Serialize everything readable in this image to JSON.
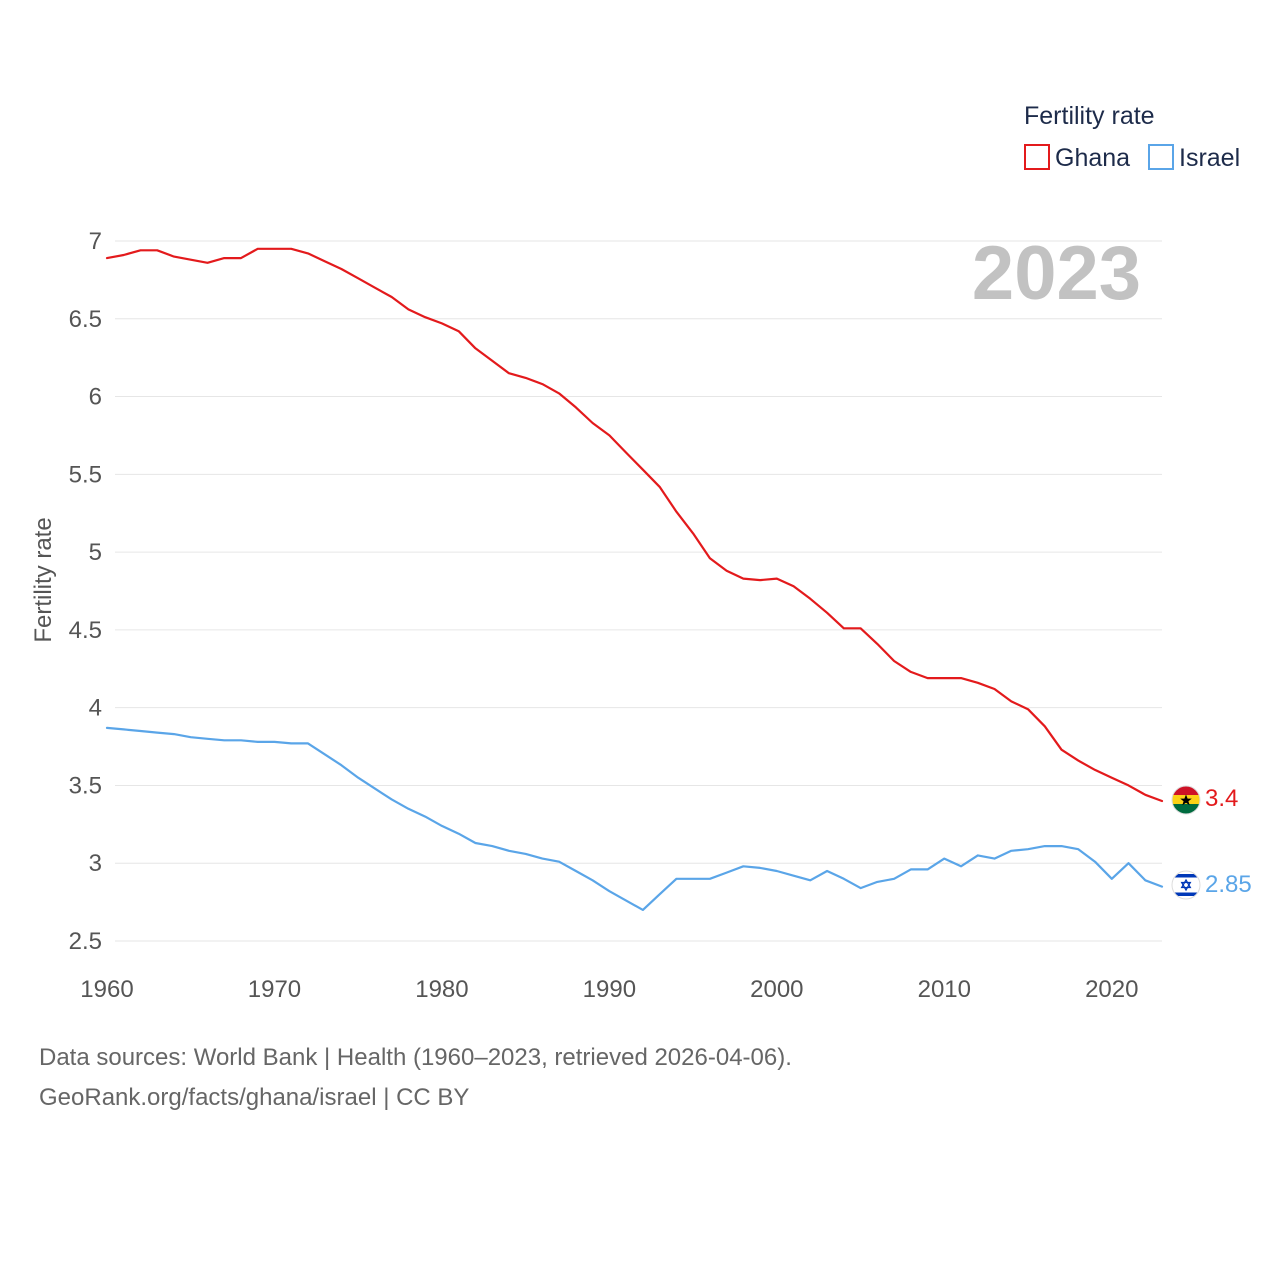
{
  "legend": {
    "title": "Fertility rate",
    "items": [
      {
        "label": "Ghana",
        "color": "#e31a1c"
      },
      {
        "label": "Israel",
        "color": "#5aa5e8"
      }
    ]
  },
  "year_label": "2023",
  "end_labels": {
    "ghana": "3.4",
    "israel": "2.85"
  },
  "flag_icons": {
    "ghana": "ghana-flag-icon",
    "israel": "israel-flag-icon"
  },
  "source": {
    "line1": "Data sources: World Bank | Health (1960–2023, retrieved 2026-04-06).",
    "line2": "GeoRank.org/facts/ghana/israel | CC BY"
  },
  "chart_data": {
    "type": "line",
    "title": "",
    "xlabel": "",
    "ylabel": "Fertility rate",
    "xlim": [
      1960,
      2023
    ],
    "ylim": [
      2.5,
      7
    ],
    "x_ticks": [
      1960,
      1970,
      1980,
      1990,
      2000,
      2010,
      2020
    ],
    "y_ticks": [
      2.5,
      3,
      3.5,
      4,
      4.5,
      5,
      5.5,
      6,
      6.5,
      7
    ],
    "x": [
      1960,
      1961,
      1962,
      1963,
      1964,
      1965,
      1966,
      1967,
      1968,
      1969,
      1970,
      1971,
      1972,
      1973,
      1974,
      1975,
      1976,
      1977,
      1978,
      1979,
      1980,
      1981,
      1982,
      1983,
      1984,
      1985,
      1986,
      1987,
      1988,
      1989,
      1990,
      1991,
      1992,
      1993,
      1994,
      1995,
      1996,
      1997,
      1998,
      1999,
      2000,
      2001,
      2002,
      2003,
      2004,
      2005,
      2006,
      2007,
      2008,
      2009,
      2010,
      2011,
      2012,
      2013,
      2014,
      2015,
      2016,
      2017,
      2018,
      2019,
      2020,
      2021,
      2022,
      2023
    ],
    "series": [
      {
        "name": "Ghana",
        "color": "#e31a1c",
        "values": [
          6.89,
          6.91,
          6.94,
          6.94,
          6.9,
          6.88,
          6.86,
          6.89,
          6.89,
          6.95,
          6.95,
          6.95,
          6.92,
          6.87,
          6.82,
          6.76,
          6.7,
          6.64,
          6.56,
          6.51,
          6.47,
          6.42,
          6.31,
          6.23,
          6.15,
          6.12,
          6.08,
          6.02,
          5.93,
          5.83,
          5.75,
          5.64,
          5.53,
          5.42,
          5.26,
          5.12,
          4.96,
          4.88,
          4.83,
          4.82,
          4.83,
          4.78,
          4.7,
          4.61,
          4.51,
          4.51,
          4.41,
          4.3,
          4.23,
          4.19,
          4.19,
          4.19,
          4.16,
          4.12,
          4.04,
          3.99,
          3.88,
          3.73,
          3.66,
          3.6,
          3.55,
          3.5,
          3.44,
          3.4
        ]
      },
      {
        "name": "Israel",
        "color": "#5aa5e8",
        "values": [
          3.87,
          3.86,
          3.85,
          3.84,
          3.83,
          3.81,
          3.8,
          3.79,
          3.79,
          3.78,
          3.78,
          3.77,
          3.77,
          3.7,
          3.63,
          3.55,
          3.48,
          3.41,
          3.35,
          3.3,
          3.24,
          3.19,
          3.13,
          3.11,
          3.08,
          3.06,
          3.03,
          3.01,
          2.95,
          2.89,
          2.82,
          2.76,
          2.7,
          2.8,
          2.9,
          2.9,
          2.9,
          2.94,
          2.98,
          2.97,
          2.95,
          2.92,
          2.89,
          2.95,
          2.9,
          2.84,
          2.88,
          2.9,
          2.96,
          2.96,
          3.03,
          2.98,
          3.05,
          3.03,
          3.08,
          3.09,
          3.11,
          3.11,
          3.09,
          3.01,
          2.9,
          3.0,
          2.89,
          2.85
        ]
      }
    ]
  }
}
